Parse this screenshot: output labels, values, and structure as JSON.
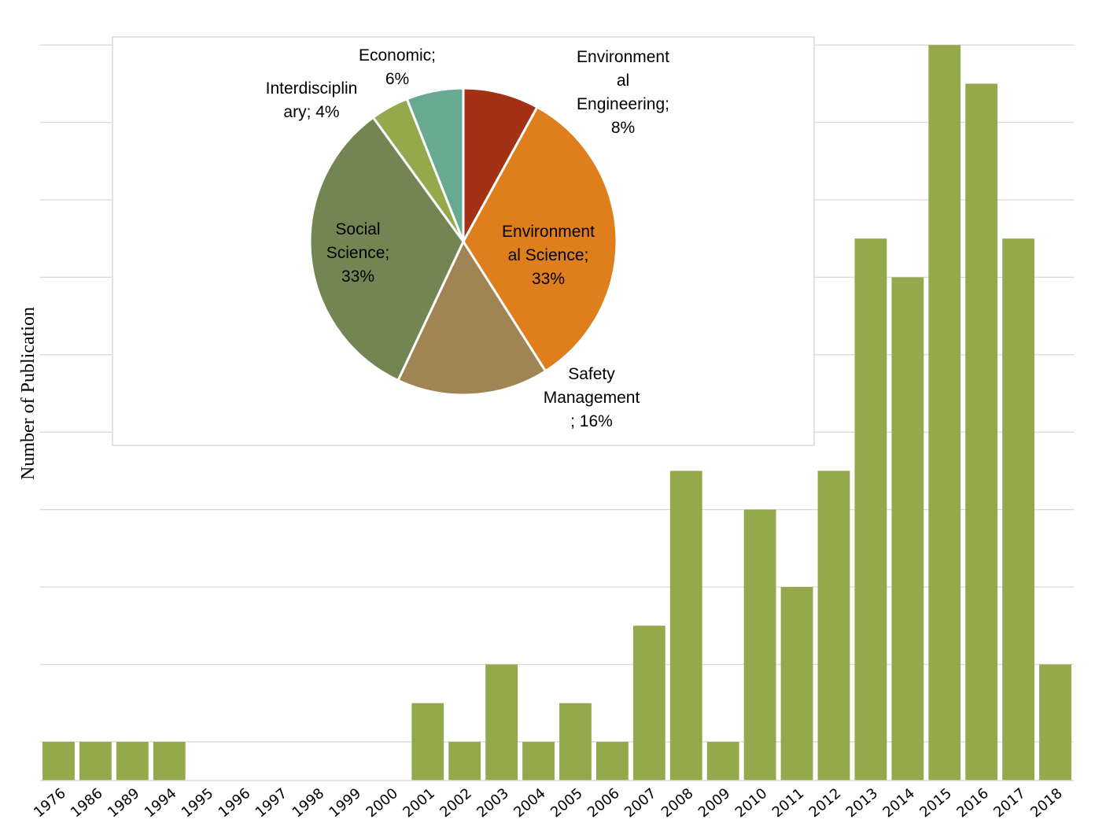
{
  "chart_data": [
    {
      "type": "bar",
      "title": "",
      "xlabel": "",
      "ylabel": "Number of Publication",
      "grid": true,
      "ylim": [
        0,
        20
      ],
      "color": "#93A94B",
      "categories": [
        "1976",
        "1986",
        "1989",
        "1994",
        "1995",
        "1996",
        "1997",
        "1998",
        "1999",
        "2000",
        "2001",
        "2002",
        "2003",
        "2004",
        "2005",
        "2006",
        "2007",
        "2008",
        "2009",
        "2010",
        "2011",
        "2012",
        "2013",
        "2014",
        "2015",
        "2016",
        "2017",
        "2018"
      ],
      "values": [
        1,
        1,
        1,
        1,
        0,
        0,
        0,
        0,
        0,
        0,
        2,
        1,
        3,
        1,
        2,
        1,
        4,
        8,
        1,
        7,
        5,
        8,
        14,
        13,
        19,
        18,
        14,
        3
      ]
    },
    {
      "type": "pie",
      "title": "",
      "slices": [
        {
          "label_lines": [
            "Environment",
            "al",
            "Engineering;",
            "8%"
          ],
          "value": 8,
          "color": "#A33215"
        },
        {
          "label_lines": [
            "Environment",
            "al Science;",
            "33%"
          ],
          "value": 33,
          "color": "#DE7E1C"
        },
        {
          "label_lines": [
            "Safety",
            "Management",
            "; 16%"
          ],
          "value": 16,
          "color": "#A08453"
        },
        {
          "label_lines": [
            "Social",
            "Science;",
            "33%"
          ],
          "value": 33,
          "color": "#738553"
        },
        {
          "label_lines": [
            "Interdisciplin",
            "ary; 4%"
          ],
          "value": 4,
          "color": "#93A94B"
        },
        {
          "label_lines": [
            "Economic;",
            "6%"
          ],
          "value": 6,
          "color": "#67AA91"
        }
      ]
    }
  ]
}
